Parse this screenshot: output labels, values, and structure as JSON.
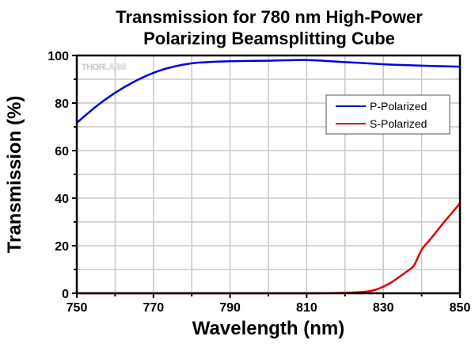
{
  "chart_data": {
    "type": "line",
    "title": [
      "Transmission for 780 nm High-Power",
      "Polarizing Beamsplitting Cube"
    ],
    "xlabel": "Wavelength (nm)",
    "ylabel": "Transmission (%)",
    "xlim": [
      750,
      850
    ],
    "ylim": [
      0,
      100
    ],
    "xticks": [
      750,
      770,
      790,
      810,
      830,
      850
    ],
    "xtick_labels": [
      "750",
      "770",
      "790",
      "810",
      "830",
      "850"
    ],
    "xminor_step": 10,
    "yticks": [
      0,
      20,
      40,
      60,
      80,
      100
    ],
    "ytick_labels": [
      "0",
      "20",
      "40",
      "60",
      "80",
      "100"
    ],
    "yminor_step": 10,
    "grid": true,
    "legend_position": "top-right",
    "watermark": {
      "dark": "THOR",
      "light": "LABS"
    },
    "series": [
      {
        "name": "P-Polarized",
        "color": "#0000e0",
        "x": [
          750,
          755,
          760,
          765,
          770,
          775,
          780,
          785,
          790,
          795,
          800,
          805,
          810,
          815,
          820,
          825,
          830,
          835,
          840,
          845,
          850
        ],
        "values": [
          71.7,
          78.5,
          84.3,
          89.0,
          92.7,
          95.2,
          96.7,
          97.3,
          97.6,
          97.7,
          97.8,
          98.0,
          98.1,
          97.7,
          97.2,
          96.8,
          96.3,
          96.0,
          95.7,
          95.5,
          95.3
        ]
      },
      {
        "name": "S-Polarized",
        "color": "#e00000",
        "x": [
          750,
          770,
          790,
          810,
          815,
          820,
          823,
          826,
          828,
          830,
          832,
          834,
          836,
          838,
          840,
          842,
          844,
          846,
          848,
          850
        ],
        "values": [
          0,
          0,
          0,
          0,
          0.05,
          0.2,
          0.4,
          0.8,
          1.5,
          2.8,
          4.5,
          6.7,
          9.0,
          11.7,
          18.3,
          22.2,
          26.2,
          30.2,
          34.0,
          37.8
        ]
      }
    ]
  }
}
